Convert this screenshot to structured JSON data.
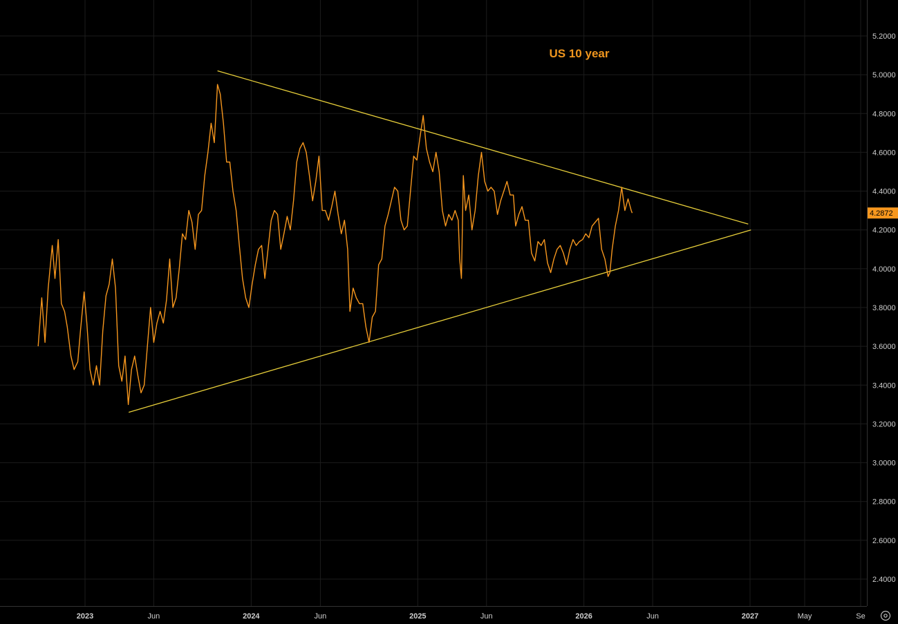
{
  "chart_data": {
    "type": "line",
    "title": "US 10 year",
    "xlabel": "",
    "ylabel": "",
    "ylim": [
      2.2,
      5.35
    ],
    "grid": true,
    "y_ticks": [
      "5.2000",
      "5.0000",
      "4.8000",
      "4.6000",
      "4.4000",
      "4.2000",
      "4.0000",
      "3.8000",
      "3.6000",
      "3.4000",
      "3.2000",
      "3.0000",
      "2.8000",
      "2.6000",
      "2.4000"
    ],
    "x_ticks": [
      {
        "label": "2023",
        "date": "2023-01-01",
        "year": true
      },
      {
        "label": "Jun",
        "date": "2023-06-01",
        "year": false
      },
      {
        "label": "2024",
        "date": "2024-01-01",
        "year": true
      },
      {
        "label": "Jun",
        "date": "2024-06-01",
        "year": false
      },
      {
        "label": "2025",
        "date": "2025-01-01",
        "year": true
      },
      {
        "label": "Jun",
        "date": "2025-06-01",
        "year": false
      },
      {
        "label": "2026",
        "date": "2026-01-01",
        "year": true
      },
      {
        "label": "Jun",
        "date": "2026-06-01",
        "year": false
      },
      {
        "label": "2027",
        "date": "2027-01-01",
        "year": true
      },
      {
        "label": "May",
        "date": "2027-05-01",
        "year": false
      },
      {
        "label": "Se",
        "date": "2027-09-01",
        "year": false
      }
    ],
    "last_value": "4.2872",
    "colors": {
      "line": "#f7971e",
      "trendline": "#e8cf3a",
      "title": "#f0961e",
      "background": "#000000",
      "grid": "#1c1c1c",
      "last_label_bg": "#f7971e"
    },
    "series": [
      {
        "points": [
          [
            "2022-09-20",
            3.6
          ],
          [
            "2022-09-28",
            3.85
          ],
          [
            "2022-10-05",
            3.62
          ],
          [
            "2022-10-12",
            3.9
          ],
          [
            "2022-10-21",
            4.12
          ],
          [
            "2022-10-27",
            3.95
          ],
          [
            "2022-11-03",
            4.15
          ],
          [
            "2022-11-10",
            3.82
          ],
          [
            "2022-11-17",
            3.78
          ],
          [
            "2022-11-23",
            3.7
          ],
          [
            "2022-12-01",
            3.55
          ],
          [
            "2022-12-08",
            3.48
          ],
          [
            "2022-12-16",
            3.52
          ],
          [
            "2022-12-22",
            3.68
          ],
          [
            "2022-12-30",
            3.88
          ],
          [
            "2023-01-05",
            3.72
          ],
          [
            "2023-01-12",
            3.48
          ],
          [
            "2023-01-19",
            3.4
          ],
          [
            "2023-01-26",
            3.5
          ],
          [
            "2023-02-02",
            3.4
          ],
          [
            "2023-02-09",
            3.68
          ],
          [
            "2023-02-16",
            3.86
          ],
          [
            "2023-02-23",
            3.92
          ],
          [
            "2023-03-02",
            4.05
          ],
          [
            "2023-03-09",
            3.9
          ],
          [
            "2023-03-16",
            3.5
          ],
          [
            "2023-03-23",
            3.42
          ],
          [
            "2023-03-30",
            3.55
          ],
          [
            "2023-04-06",
            3.3
          ],
          [
            "2023-04-13",
            3.48
          ],
          [
            "2023-04-20",
            3.55
          ],
          [
            "2023-04-27",
            3.45
          ],
          [
            "2023-05-04",
            3.36
          ],
          [
            "2023-05-11",
            3.4
          ],
          [
            "2023-05-18",
            3.6
          ],
          [
            "2023-05-25",
            3.8
          ],
          [
            "2023-06-01",
            3.62
          ],
          [
            "2023-06-08",
            3.72
          ],
          [
            "2023-06-15",
            3.78
          ],
          [
            "2023-06-22",
            3.72
          ],
          [
            "2023-06-29",
            3.84
          ],
          [
            "2023-07-06",
            4.05
          ],
          [
            "2023-07-13",
            3.8
          ],
          [
            "2023-07-20",
            3.85
          ],
          [
            "2023-07-27",
            4.0
          ],
          [
            "2023-08-03",
            4.18
          ],
          [
            "2023-08-10",
            4.15
          ],
          [
            "2023-08-17",
            4.3
          ],
          [
            "2023-08-24",
            4.24
          ],
          [
            "2023-08-31",
            4.1
          ],
          [
            "2023-09-07",
            4.28
          ],
          [
            "2023-09-14",
            4.3
          ],
          [
            "2023-09-21",
            4.48
          ],
          [
            "2023-09-28",
            4.6
          ],
          [
            "2023-10-05",
            4.75
          ],
          [
            "2023-10-12",
            4.65
          ],
          [
            "2023-10-19",
            4.95
          ],
          [
            "2023-10-25",
            4.9
          ],
          [
            "2023-11-01",
            4.75
          ],
          [
            "2023-11-08",
            4.55
          ],
          [
            "2023-11-15",
            4.55
          ],
          [
            "2023-11-22",
            4.4
          ],
          [
            "2023-11-29",
            4.3
          ],
          [
            "2023-12-06",
            4.12
          ],
          [
            "2023-12-13",
            3.95
          ],
          [
            "2023-12-20",
            3.85
          ],
          [
            "2023-12-27",
            3.8
          ],
          [
            "2024-01-03",
            3.92
          ],
          [
            "2024-01-10",
            4.02
          ],
          [
            "2024-01-17",
            4.1
          ],
          [
            "2024-01-24",
            4.12
          ],
          [
            "2024-01-31",
            3.95
          ],
          [
            "2024-02-07",
            4.1
          ],
          [
            "2024-02-14",
            4.25
          ],
          [
            "2024-02-21",
            4.3
          ],
          [
            "2024-02-28",
            4.28
          ],
          [
            "2024-03-06",
            4.1
          ],
          [
            "2024-03-13",
            4.18
          ],
          [
            "2024-03-20",
            4.27
          ],
          [
            "2024-03-27",
            4.2
          ],
          [
            "2024-04-03",
            4.35
          ],
          [
            "2024-04-10",
            4.55
          ],
          [
            "2024-04-17",
            4.62
          ],
          [
            "2024-04-24",
            4.65
          ],
          [
            "2024-05-01",
            4.6
          ],
          [
            "2024-05-08",
            4.48
          ],
          [
            "2024-05-15",
            4.35
          ],
          [
            "2024-05-22",
            4.45
          ],
          [
            "2024-05-29",
            4.58
          ],
          [
            "2024-06-05",
            4.3
          ],
          [
            "2024-06-12",
            4.3
          ],
          [
            "2024-06-19",
            4.25
          ],
          [
            "2024-06-26",
            4.32
          ],
          [
            "2024-07-03",
            4.4
          ],
          [
            "2024-07-10",
            4.28
          ],
          [
            "2024-07-17",
            4.18
          ],
          [
            "2024-07-24",
            4.25
          ],
          [
            "2024-07-31",
            4.1
          ],
          [
            "2024-08-05",
            3.78
          ],
          [
            "2024-08-12",
            3.9
          ],
          [
            "2024-08-19",
            3.85
          ],
          [
            "2024-08-26",
            3.82
          ],
          [
            "2024-09-02",
            3.82
          ],
          [
            "2024-09-09",
            3.7
          ],
          [
            "2024-09-16",
            3.62
          ],
          [
            "2024-09-23",
            3.75
          ],
          [
            "2024-09-30",
            3.78
          ],
          [
            "2024-10-07",
            4.02
          ],
          [
            "2024-10-14",
            4.05
          ],
          [
            "2024-10-21",
            4.22
          ],
          [
            "2024-10-28",
            4.28
          ],
          [
            "2024-11-04",
            4.35
          ],
          [
            "2024-11-11",
            4.42
          ],
          [
            "2024-11-18",
            4.4
          ],
          [
            "2024-11-25",
            4.25
          ],
          [
            "2024-12-02",
            4.2
          ],
          [
            "2024-12-09",
            4.22
          ],
          [
            "2024-12-16",
            4.4
          ],
          [
            "2024-12-23",
            4.58
          ],
          [
            "2024-12-30",
            4.56
          ],
          [
            "2025-01-06",
            4.68
          ],
          [
            "2025-01-13",
            4.79
          ],
          [
            "2025-01-20",
            4.62
          ],
          [
            "2025-01-27",
            4.55
          ],
          [
            "2025-02-03",
            4.5
          ],
          [
            "2025-02-10",
            4.6
          ],
          [
            "2025-02-17",
            4.5
          ],
          [
            "2025-02-24",
            4.3
          ],
          [
            "2025-03-03",
            4.22
          ],
          [
            "2025-03-10",
            4.28
          ],
          [
            "2025-03-17",
            4.25
          ],
          [
            "2025-03-24",
            4.3
          ],
          [
            "2025-03-31",
            4.25
          ],
          [
            "2025-04-03",
            4.05
          ],
          [
            "2025-04-07",
            3.95
          ],
          [
            "2025-04-11",
            4.48
          ],
          [
            "2025-04-16",
            4.3
          ],
          [
            "2025-04-23",
            4.38
          ],
          [
            "2025-04-30",
            4.2
          ],
          [
            "2025-05-07",
            4.3
          ],
          [
            "2025-05-14",
            4.48
          ],
          [
            "2025-05-21",
            4.6
          ],
          [
            "2025-05-28",
            4.45
          ],
          [
            "2025-06-04",
            4.4
          ],
          [
            "2025-06-11",
            4.42
          ],
          [
            "2025-06-18",
            4.4
          ],
          [
            "2025-06-25",
            4.28
          ],
          [
            "2025-07-02",
            4.35
          ],
          [
            "2025-07-09",
            4.4
          ],
          [
            "2025-07-16",
            4.45
          ],
          [
            "2025-07-23",
            4.38
          ],
          [
            "2025-07-30",
            4.38
          ],
          [
            "2025-08-04",
            4.22
          ],
          [
            "2025-08-11",
            4.28
          ],
          [
            "2025-08-18",
            4.32
          ],
          [
            "2025-08-25",
            4.25
          ],
          [
            "2025-09-01",
            4.25
          ],
          [
            "2025-09-08",
            4.08
          ],
          [
            "2025-09-15",
            4.04
          ],
          [
            "2025-09-22",
            4.14
          ],
          [
            "2025-09-29",
            4.12
          ],
          [
            "2025-10-06",
            4.15
          ],
          [
            "2025-10-13",
            4.03
          ],
          [
            "2025-10-20",
            3.98
          ],
          [
            "2025-10-27",
            4.05
          ],
          [
            "2025-11-03",
            4.1
          ],
          [
            "2025-11-10",
            4.12
          ],
          [
            "2025-11-17",
            4.08
          ],
          [
            "2025-11-24",
            4.02
          ],
          [
            "2025-12-01",
            4.1
          ],
          [
            "2025-12-08",
            4.15
          ],
          [
            "2025-12-15",
            4.12
          ],
          [
            "2025-12-22",
            4.14
          ],
          [
            "2025-12-29",
            4.15
          ],
          [
            "2026-01-05",
            4.18
          ],
          [
            "2026-01-12",
            4.16
          ],
          [
            "2026-01-19",
            4.22
          ],
          [
            "2026-01-26",
            4.24
          ],
          [
            "2026-02-02",
            4.26
          ],
          [
            "2026-02-09",
            4.1
          ],
          [
            "2026-02-16",
            4.05
          ],
          [
            "2026-02-23",
            3.96
          ],
          [
            "2026-02-27",
            3.98
          ],
          [
            "2026-03-04",
            4.1
          ],
          [
            "2026-03-11",
            4.22
          ],
          [
            "2026-03-18",
            4.3
          ],
          [
            "2026-03-25",
            4.42
          ],
          [
            "2026-04-01",
            4.3
          ],
          [
            "2026-04-08",
            4.36
          ],
          [
            "2026-04-15",
            4.3
          ],
          [
            "2026-04-17",
            4.2872
          ]
        ]
      }
    ],
    "trendlines": [
      {
        "from": [
          "2023-10-19",
          5.02
        ],
        "to": [
          "2026-12-28",
          4.23
        ]
      },
      {
        "from": [
          "2023-04-07",
          3.26
        ],
        "to": [
          "2027-01-03",
          4.2
        ]
      }
    ]
  }
}
